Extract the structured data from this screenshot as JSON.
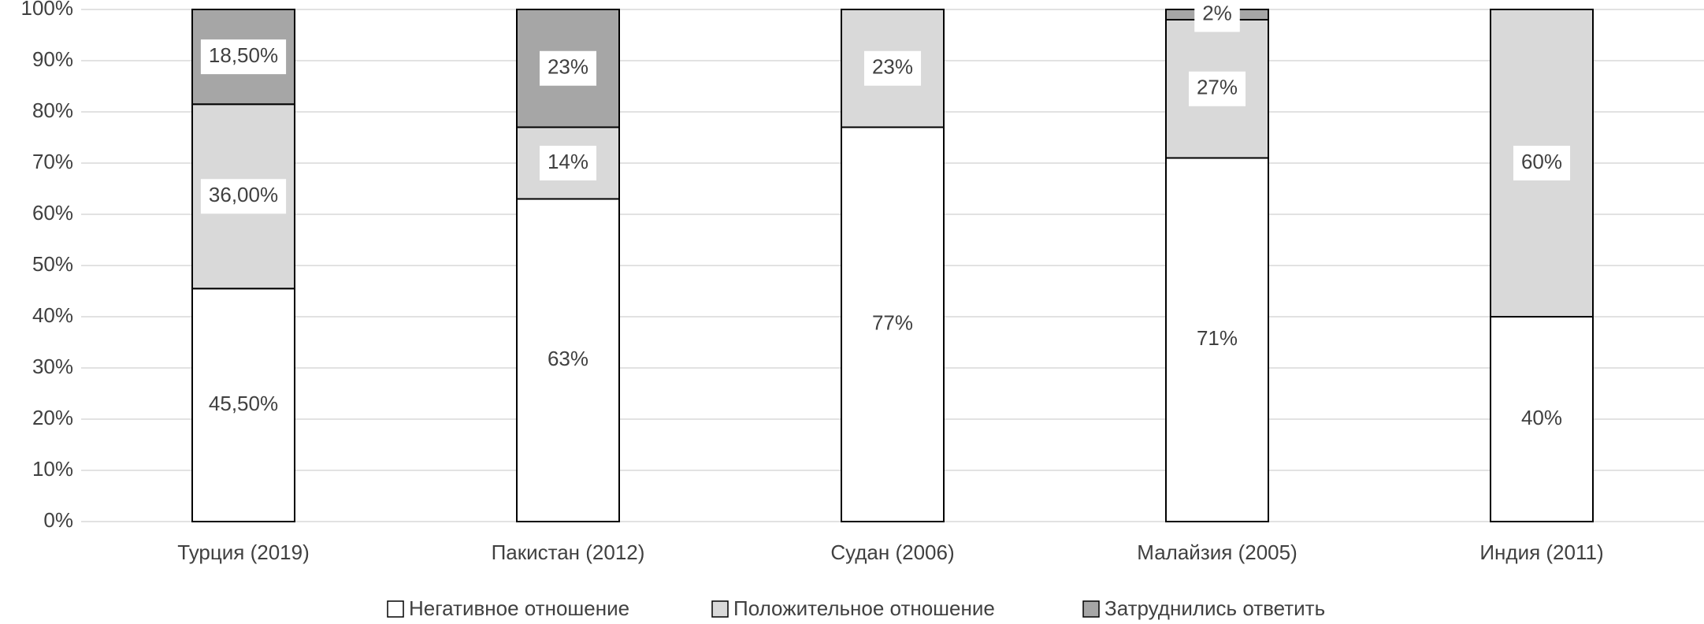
{
  "chart_data": {
    "type": "stacked_bar",
    "categories": [
      "Турция (2019)",
      "Пакистан (2012)",
      "Судан (2006)",
      "Малайзия (2005)",
      "Индия (2011)"
    ],
    "series": [
      {
        "name": "Негативное отношение",
        "color": "#ffffff",
        "values": [
          45.5,
          63,
          77,
          71,
          40
        ],
        "value_labels": [
          "45,50%",
          "63%",
          "77%",
          "71%",
          "40%"
        ]
      },
      {
        "name": "Положительное отношение",
        "color": "#d9d9d9",
        "values": [
          36,
          14,
          23,
          27,
          60
        ],
        "value_labels": [
          "36,00%",
          "14%",
          "23%",
          "27%",
          "60%"
        ]
      },
      {
        "name": "Затруднились ответить",
        "color": "#a6a6a6",
        "values": [
          18.5,
          23,
          null,
          2,
          null
        ],
        "value_labels": [
          "18,50%",
          "23%",
          null,
          "2%",
          null
        ]
      }
    ],
    "ylim": [
      0,
      100
    ],
    "yticks": [
      {
        "value": 0,
        "label": "0%"
      },
      {
        "value": 10,
        "label": "10%"
      },
      {
        "value": 20,
        "label": "20%"
      },
      {
        "value": 30,
        "label": "30%"
      },
      {
        "value": 40,
        "label": "40%"
      },
      {
        "value": 50,
        "label": "50%"
      },
      {
        "value": 60,
        "label": "60%"
      },
      {
        "value": 70,
        "label": "70%"
      },
      {
        "value": 80,
        "label": "80%"
      },
      {
        "value": 90,
        "label": "90%"
      },
      {
        "value": 100,
        "label": "100%"
      }
    ],
    "grid": true,
    "legend": "bottom"
  }
}
